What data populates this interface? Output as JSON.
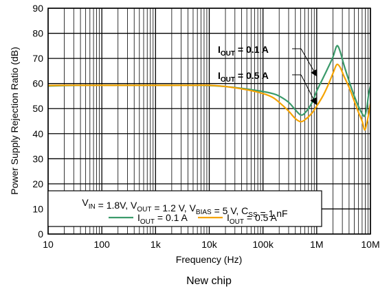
{
  "chart_data": {
    "type": "line",
    "x_scale": "log",
    "title": "",
    "xlabel": "Frequency (Hz)",
    "ylabel": "Power Supply Rejection Ratio (dB)",
    "xlim": [
      10,
      10000000
    ],
    "ylim": [
      0,
      90
    ],
    "x_ticks": [
      10,
      100,
      1000,
      10000,
      100000,
      1000000,
      10000000
    ],
    "x_tick_labels": [
      "10",
      "100",
      "1k",
      "10k",
      "100k",
      "1M",
      "10M"
    ],
    "y_ticks": [
      0,
      10,
      20,
      30,
      40,
      50,
      60,
      70,
      80,
      90
    ],
    "y_tick_labels": [
      "0",
      "10",
      "20",
      "30",
      "40",
      "50",
      "60",
      "70",
      "80",
      "90"
    ],
    "grid": true,
    "conditions": {
      "segments": [
        {
          "t": "V",
          "s": "IN"
        },
        {
          "t": " = 1.8V, V"
        },
        {
          "t": "",
          "s": "OUT"
        },
        {
          "t": " = 1.2 V, V"
        },
        {
          "t": "",
          "s": "BIAS"
        },
        {
          "t": " = 5 V, C"
        },
        {
          "t": "",
          "s": "SS"
        },
        {
          "t": " = 1 nF"
        }
      ]
    },
    "series": [
      {
        "name": "IOUT = 0.1 A",
        "label_main": "I",
        "label_sub": "OUT",
        "label_tail": " = 0.1 A",
        "color": "#3a9a6a",
        "x": [
          10,
          20,
          50,
          100,
          200,
          500,
          1000,
          2000,
          5000,
          10000,
          20000,
          50000,
          100000,
          150000,
          200000,
          300000,
          400000,
          500000,
          600000,
          800000,
          1000000,
          1300000,
          1600000,
          2000000,
          2300000,
          2500000,
          2800000,
          3200000,
          4000000,
          5000000,
          6000000,
          7000000,
          7800000,
          8500000,
          9300000,
          10000000
        ],
        "y": [
          59,
          59.2,
          59.3,
          59.3,
          59.3,
          59.3,
          59.3,
          59.3,
          59.3,
          59.2,
          58.8,
          57.8,
          56.8,
          56,
          55,
          52.5,
          49.5,
          47.5,
          48.2,
          52,
          57,
          62,
          66,
          70.5,
          74.5,
          74.8,
          72,
          67.5,
          61,
          55,
          50.8,
          48,
          47,
          50,
          56,
          59
        ]
      },
      {
        "name": "IOUT = 0.5 A",
        "label_main": "I",
        "label_sub": "OUT",
        "label_tail": " = 0.5 A",
        "color": "#f5a300",
        "x": [
          10,
          20,
          50,
          100,
          200,
          500,
          1000,
          2000,
          5000,
          10000,
          20000,
          50000,
          100000,
          150000,
          200000,
          300000,
          400000,
          500000,
          600000,
          800000,
          1000000,
          1300000,
          1600000,
          2000000,
          2300000,
          2500000,
          2800000,
          3200000,
          4000000,
          5000000,
          6000000,
          7000000,
          7800000,
          8500000,
          9300000,
          10000000
        ],
        "y": [
          59.2,
          59.3,
          59.3,
          59.3,
          59.3,
          59.3,
          59.3,
          59.3,
          59.3,
          59.3,
          58.8,
          57.5,
          56,
          54.5,
          52.5,
          49,
          46,
          44.8,
          45.5,
          48,
          51,
          55,
          59,
          64,
          67.2,
          67.5,
          66,
          63,
          58.5,
          53,
          48.5,
          45,
          41.5,
          44,
          48,
          52
        ]
      }
    ],
    "annotations": [
      {
        "main": "I",
        "sub": "OUT",
        "tail": " = 0.1 A"
      },
      {
        "main": "I",
        "sub": "OUT",
        "tail": " = 0.5 A"
      }
    ],
    "caption": "New chip"
  }
}
